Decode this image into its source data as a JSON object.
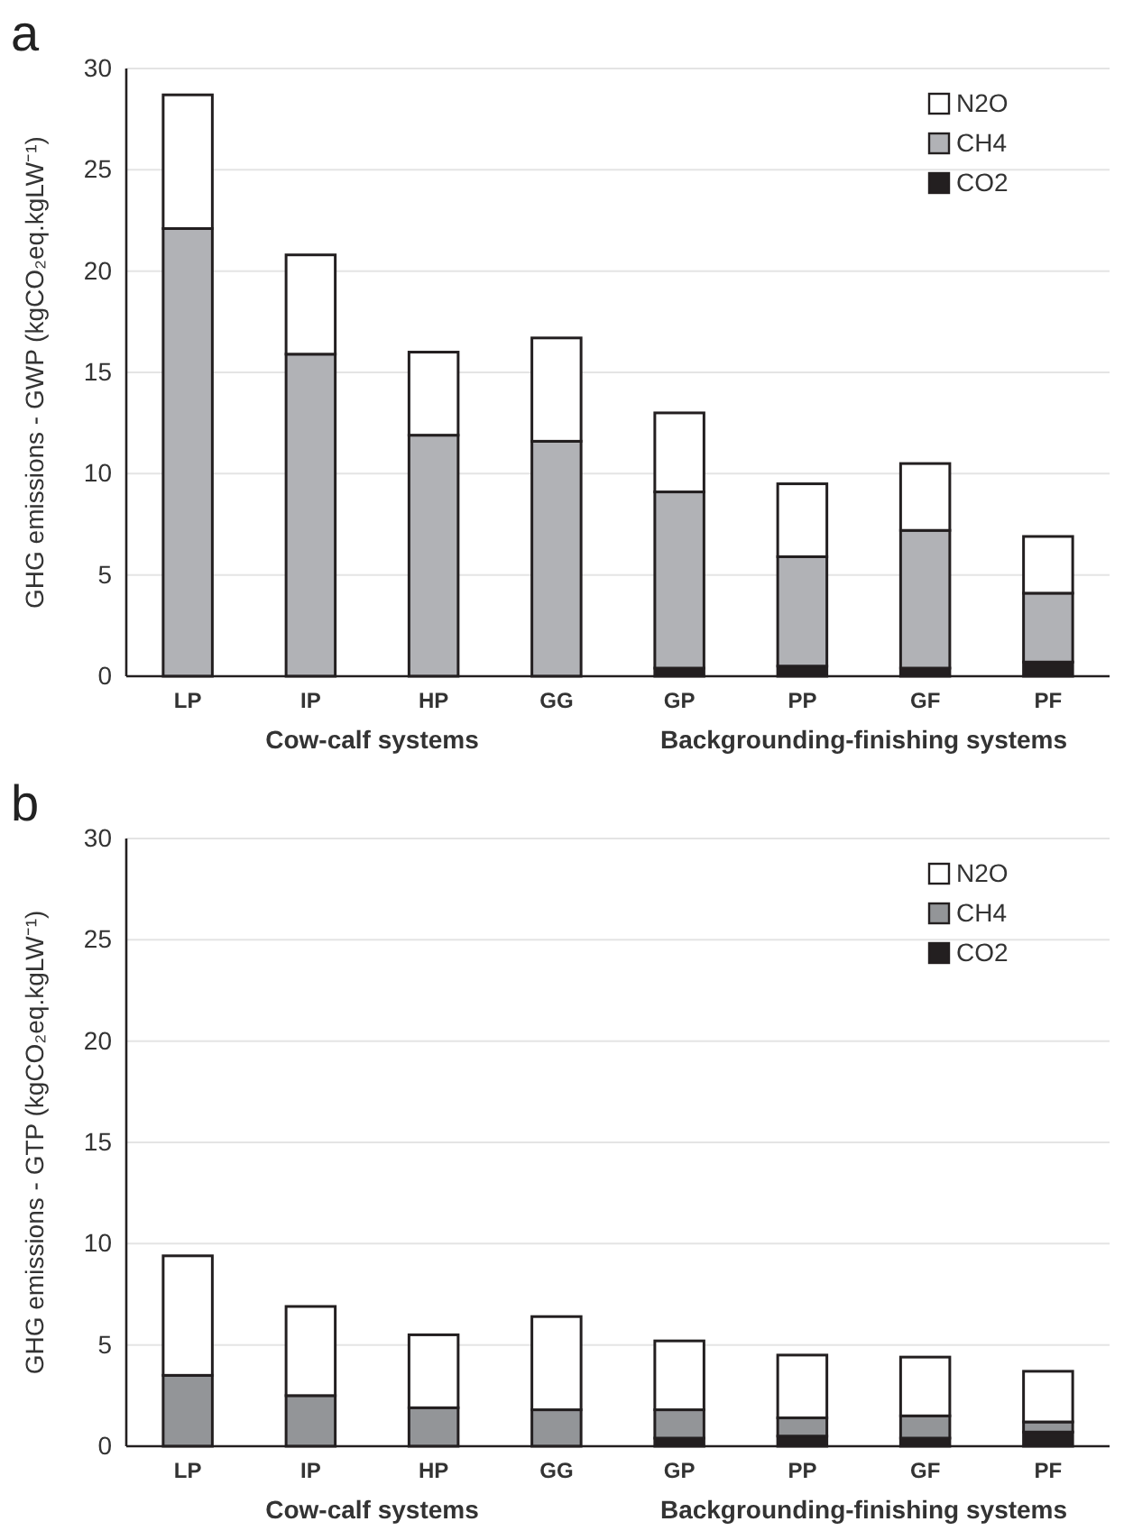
{
  "chart_data": [
    {
      "type": "bar",
      "stacked": true,
      "title": "a",
      "ylabel": "GHG emissions - GWP (kgCO₂eq.kgLW⁻¹)",
      "categories": [
        "LP",
        "IP",
        "HP",
        "GG",
        "GP",
        "PP",
        "GF",
        "PF"
      ],
      "series": [
        {
          "name": "CO2",
          "color": "#231f20",
          "values": [
            0,
            0,
            null,
            0,
            0.4,
            0.5,
            0.4,
            0.7
          ]
        },
        {
          "name": "CH4",
          "color": "#b1b2b6",
          "values": [
            22.1,
            15.9,
            11.9,
            11.6,
            8.7,
            5.4,
            6.8,
            3.4
          ]
        },
        {
          "name": "N2O",
          "color": "#ffffff",
          "values": [
            6.6,
            4.9,
            4.1,
            5.1,
            3.9,
            3.6,
            3.3,
            2.8
          ]
        }
      ],
      "ylim": [
        0,
        30
      ],
      "yticks": [
        0,
        5,
        10,
        15,
        20,
        25,
        30
      ],
      "grid": "y",
      "legend": "top right",
      "annotations": [
        "Cow-calf systems",
        "Backgrounding-finishing systems"
      ]
    },
    {
      "type": "bar",
      "stacked": true,
      "title": "b",
      "ylabel": "GHG emissions - GTP (kgCO₂eq.kgLW⁻¹)",
      "categories": [
        "LP",
        "IP",
        "HP",
        "GG",
        "GP",
        "PP",
        "GF",
        "PF"
      ],
      "series": [
        {
          "name": "CO2",
          "color": "#231f20",
          "values": [
            0,
            0,
            null,
            0,
            0.4,
            0.5,
            0.4,
            0.7
          ]
        },
        {
          "name": "CH4",
          "color": "#939598",
          "values": [
            3.5,
            2.5,
            1.9,
            1.8,
            1.4,
            0.9,
            1.1,
            0.5
          ]
        },
        {
          "name": "N2O",
          "color": "#ffffff",
          "values": [
            5.9,
            4.4,
            3.6,
            4.6,
            3.4,
            3.1,
            2.9,
            2.5
          ]
        }
      ],
      "ylim": [
        0,
        30
      ],
      "yticks": [
        0,
        5,
        10,
        15,
        20,
        25,
        30
      ],
      "grid": "y",
      "legend": "top right",
      "annotations": [
        "Cow-calf systems",
        "Backgrounding-finishing systems"
      ]
    }
  ]
}
